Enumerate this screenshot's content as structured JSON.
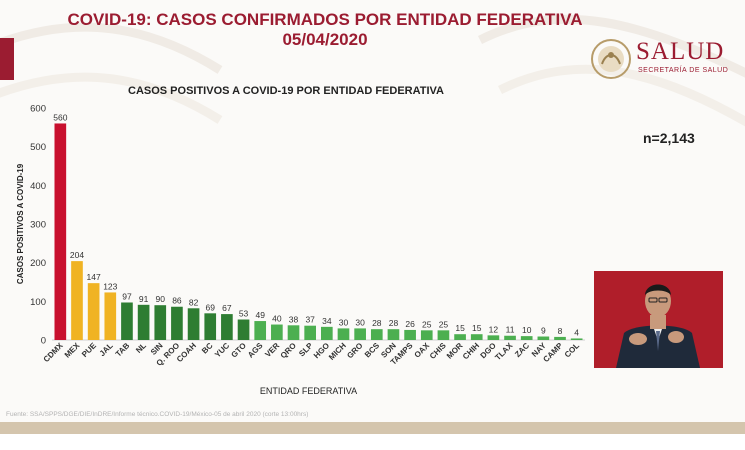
{
  "header": {
    "title": "COVID-19: CASOS CONFIRMADOS POR ENTIDAD FEDERATIVA",
    "date": "05/04/2020"
  },
  "logo": {
    "word": "SALUD",
    "subtitle": "SECRETARÍA DE SALUD"
  },
  "n_label": "n=2,143",
  "footer": {
    "source": "Fuente: SSA/SPPS/DGE/DIE/InDRE/Informe técnico.COVID-19/México-05 de abril 2020 (corte 13:00hrs)"
  },
  "colors": {
    "brand": "#9b1c31",
    "bar_red": "#c8102e",
    "bar_yellow": "#f0b323",
    "bar_green": "#2e7d32",
    "bar_light_green": "#4caf50"
  },
  "chart_data": {
    "type": "bar",
    "title": "CASOS POSITIVOS A COVID-19 POR ENTIDAD FEDERATIVA",
    "xlabel": "ENTIDAD FEDERATIVA",
    "ylabel": "CASOS POSITIVOS A COVID-19",
    "ylim": [
      0,
      600
    ],
    "yticks": [
      0,
      100,
      200,
      300,
      400,
      500,
      600
    ],
    "grid": false,
    "categories": [
      "CDMX",
      "MEX",
      "PUE",
      "JAL",
      "TAB",
      "NL",
      "SIN",
      "Q. ROO",
      "COAH",
      "BC",
      "YUC",
      "GTO",
      "AGS",
      "VER",
      "QRO",
      "SLP",
      "HGO",
      "MICH",
      "GRO",
      "BCS",
      "SON",
      "TAMPS",
      "OAX",
      "CHIS",
      "MOR",
      "CHIH",
      "DGO",
      "TLAX",
      "ZAC",
      "NAY",
      "CAMP",
      "COL"
    ],
    "values": [
      560,
      204,
      147,
      123,
      97,
      91,
      90,
      86,
      82,
      69,
      67,
      53,
      49,
      40,
      38,
      37,
      34,
      30,
      30,
      28,
      28,
      26,
      25,
      25,
      15,
      15,
      12,
      11,
      10,
      9,
      8,
      4
    ],
    "bar_colors": [
      "#c8102e",
      "#f0b323",
      "#f0b323",
      "#f0b323",
      "#2e7d32",
      "#2e7d32",
      "#2e7d32",
      "#2e7d32",
      "#2e7d32",
      "#2e7d32",
      "#2e7d32",
      "#2e7d32",
      "#4caf50",
      "#4caf50",
      "#4caf50",
      "#4caf50",
      "#4caf50",
      "#4caf50",
      "#4caf50",
      "#4caf50",
      "#4caf50",
      "#4caf50",
      "#4caf50",
      "#4caf50",
      "#4caf50",
      "#4caf50",
      "#4caf50",
      "#4caf50",
      "#4caf50",
      "#4caf50",
      "#4caf50",
      "#4caf50"
    ]
  }
}
